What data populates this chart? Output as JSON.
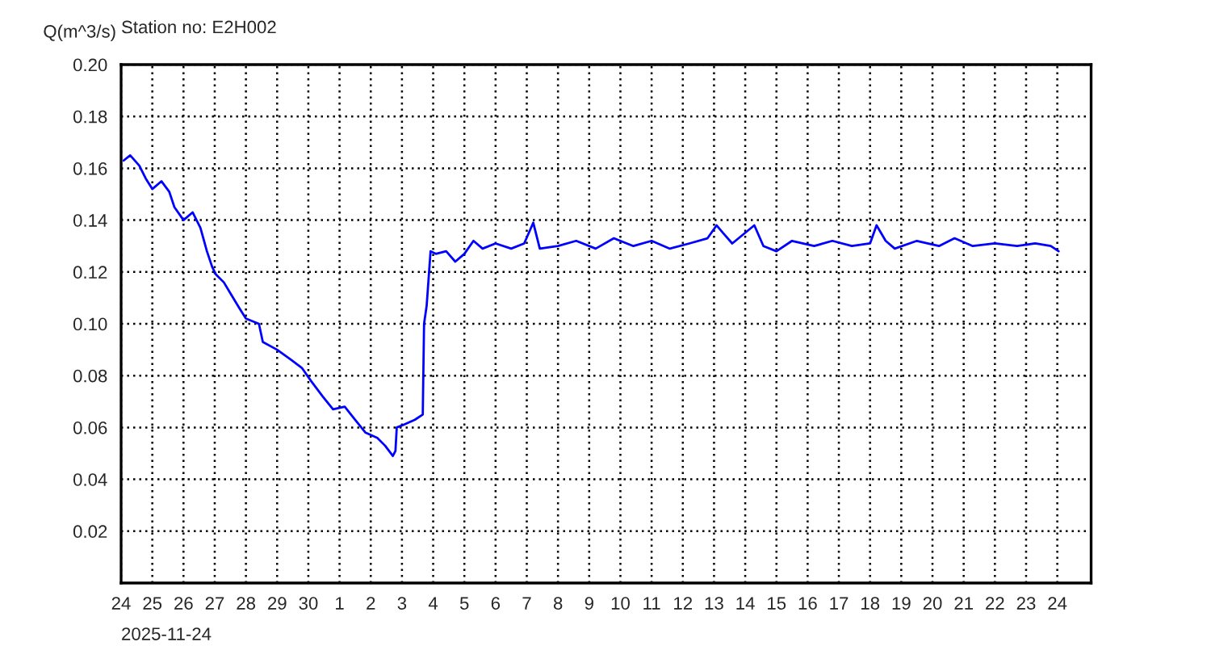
{
  "chart_data": {
    "type": "line",
    "title": "Station no: E2H002",
    "ylabel": "Q(m^3/s)",
    "annotations": [
      "2025-11-24"
    ],
    "x": [
      "2025-11-24T02:00",
      "2025-11-24T07:00",
      "2025-11-24T14:00",
      "2025-11-24T19:00",
      "2025-11-25T00:00",
      "2025-11-25T07:00",
      "2025-11-25T13:00",
      "2025-11-25T17:00",
      "2025-11-26T00:00",
      "2025-11-26T07:00",
      "2025-11-26T13:00",
      "2025-11-26T18:00",
      "2025-11-26T22:00",
      "2025-11-27T01:00",
      "2025-11-27T07:00",
      "2025-11-27T13:00",
      "2025-11-27T19:00",
      "2025-11-28T00:00",
      "2025-11-28T05:00",
      "2025-11-28T10:00",
      "2025-11-28T13:00",
      "2025-11-29T00:00",
      "2025-11-29T11:00",
      "2025-11-29T19:00",
      "2025-11-30T02:00",
      "2025-11-30T11:00",
      "2025-11-30T19:00",
      "2025-12-01T04:00",
      "2025-12-01T12:00",
      "2025-12-01T20:00",
      "2025-12-02T05:00",
      "2025-12-02T11:00",
      "2025-12-02T17:00",
      "2025-12-02T19:00",
      "2025-12-02T20:00",
      "2025-12-03T01:00",
      "2025-12-03T10:00",
      "2025-12-03T16:00",
      "2025-12-03T17:00",
      "2025-12-03T19:00",
      "2025-12-03T22:00",
      "2025-12-04T02:00",
      "2025-12-04T10:00",
      "2025-12-04T17:00",
      "2025-12-05T00:00",
      "2025-12-05T07:00",
      "2025-12-05T14:00",
      "2025-12-06T00:00",
      "2025-12-06T12:00",
      "2025-12-06T22:00",
      "2025-12-07T05:00",
      "2025-12-07T10:00",
      "2025-12-08T00:00",
      "2025-12-08T14:00",
      "2025-12-09T05:00",
      "2025-12-09T19:00",
      "2025-12-10T10:00",
      "2025-12-11T00:00",
      "2025-12-11T14:00",
      "2025-12-12T05:00",
      "2025-12-12T19:00",
      "2025-12-13T02:00",
      "2025-12-13T07:00",
      "2025-12-13T14:00",
      "2025-12-14T07:00",
      "2025-12-14T14:00",
      "2025-12-15T00:00",
      "2025-12-15T12:00",
      "2025-12-16T05:00",
      "2025-12-16T19:00",
      "2025-12-17T10:00",
      "2025-12-18T00:00",
      "2025-12-18T05:00",
      "2025-12-18T12:00",
      "2025-12-18T19:00",
      "2025-12-19T12:00",
      "2025-12-20T05:00",
      "2025-12-20T17:00",
      "2025-12-21T07:00",
      "2025-12-22T00:00",
      "2025-12-22T17:00",
      "2025-12-23T07:00",
      "2025-12-23T19:00",
      "2025-12-24T01:00"
    ],
    "series": [
      {
        "color": "#0000ff",
        "values": [
          0.163,
          0.165,
          0.161,
          0.156,
          0.152,
          0.155,
          0.151,
          0.145,
          0.14,
          0.143,
          0.137,
          0.128,
          0.122,
          0.119,
          0.116,
          0.111,
          0.106,
          0.102,
          0.101,
          0.1,
          0.093,
          0.09,
          0.086,
          0.083,
          0.078,
          0.072,
          0.067,
          0.068,
          0.063,
          0.058,
          0.056,
          0.053,
          0.049,
          0.051,
          0.06,
          0.061,
          0.063,
          0.065,
          0.1,
          0.107,
          0.128,
          0.127,
          0.128,
          0.124,
          0.127,
          0.132,
          0.129,
          0.131,
          0.129,
          0.131,
          0.139,
          0.129,
          0.13,
          0.132,
          0.129,
          0.133,
          0.13,
          0.132,
          0.129,
          0.131,
          0.133,
          0.138,
          0.135,
          0.131,
          0.138,
          0.13,
          0.128,
          0.132,
          0.13,
          0.132,
          0.13,
          0.131,
          0.138,
          0.132,
          0.129,
          0.132,
          0.13,
          0.133,
          0.13,
          0.131,
          0.13,
          0.131,
          0.13,
          0.128
        ]
      }
    ],
    "xlim": [
      "2025-11-24",
      "2025-12-25T02:00"
    ],
    "xticks": [
      {
        "value": "2025-11-24",
        "label": "24"
      },
      {
        "value": "2025-11-25",
        "label": "25"
      },
      {
        "value": "2025-11-26",
        "label": "26"
      },
      {
        "value": "2025-11-27",
        "label": "27"
      },
      {
        "value": "2025-11-28",
        "label": "28"
      },
      {
        "value": "2025-11-29",
        "label": "29"
      },
      {
        "value": "2025-11-30",
        "label": "30"
      },
      {
        "value": "2025-12-01",
        "label": "1"
      },
      {
        "value": "2025-12-02",
        "label": "2"
      },
      {
        "value": "2025-12-03",
        "label": "3"
      },
      {
        "value": "2025-12-04",
        "label": "4"
      },
      {
        "value": "2025-12-05",
        "label": "5"
      },
      {
        "value": "2025-12-06",
        "label": "6"
      },
      {
        "value": "2025-12-07",
        "label": "7"
      },
      {
        "value": "2025-12-08",
        "label": "8"
      },
      {
        "value": "2025-12-09",
        "label": "9"
      },
      {
        "value": "2025-12-10",
        "label": "10"
      },
      {
        "value": "2025-12-11",
        "label": "11"
      },
      {
        "value": "2025-12-12",
        "label": "12"
      },
      {
        "value": "2025-12-13",
        "label": "13"
      },
      {
        "value": "2025-12-14",
        "label": "14"
      },
      {
        "value": "2025-12-15",
        "label": "15"
      },
      {
        "value": "2025-12-16",
        "label": "16"
      },
      {
        "value": "2025-12-17",
        "label": "17"
      },
      {
        "value": "2025-12-18",
        "label": "18"
      },
      {
        "value": "2025-12-19",
        "label": "19"
      },
      {
        "value": "2025-12-20",
        "label": "20"
      },
      {
        "value": "2025-12-21",
        "label": "21"
      },
      {
        "value": "2025-12-22",
        "label": "22"
      },
      {
        "value": "2025-12-23",
        "label": "23"
      },
      {
        "value": "2025-12-24",
        "label": "24"
      }
    ],
    "ylim": [
      0,
      0.2
    ],
    "yticks": [
      {
        "value": 0.02,
        "label": "0.02"
      },
      {
        "value": 0.04,
        "label": "0.04"
      },
      {
        "value": 0.06,
        "label": "0.06"
      },
      {
        "value": 0.08,
        "label": "0.08"
      },
      {
        "value": 0.1,
        "label": "0.10"
      },
      {
        "value": 0.12,
        "label": "0.12"
      },
      {
        "value": 0.14,
        "label": "0.14"
      },
      {
        "value": 0.16,
        "label": "0.16"
      },
      {
        "value": 0.18,
        "label": "0.18"
      },
      {
        "value": 0.2,
        "label": "0.20"
      }
    ],
    "grid": true
  }
}
